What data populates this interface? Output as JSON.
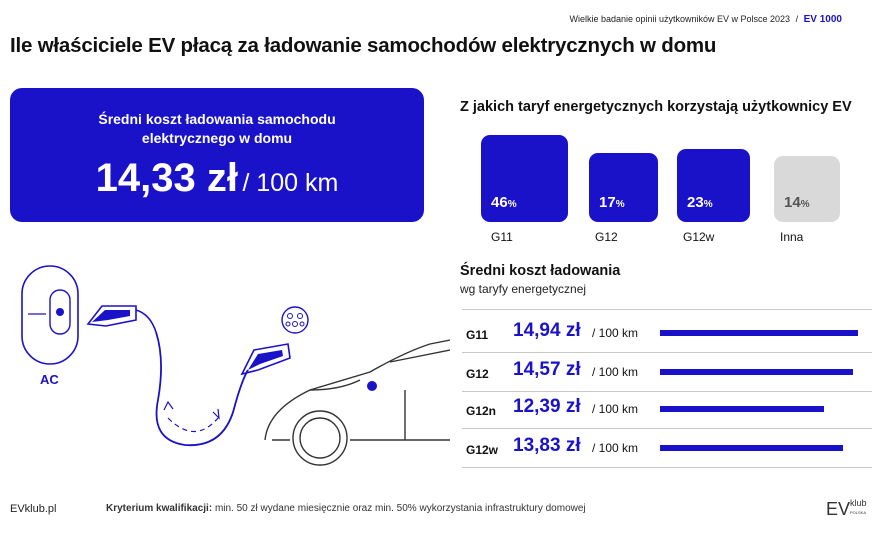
{
  "header": {
    "survey": "Wielkie badanie opinii użytkowników EV w Polsce 2023",
    "separator": "/",
    "brand": "EV 1000",
    "title": "Ile właściciele EV płacą za ładowanie samochodów elektrycznych w domu"
  },
  "cost_card": {
    "label_line1": "Średni koszt ładowania samochodu",
    "label_line2": "elektrycznego w domu",
    "value": "14,33 zł",
    "unit": "/ 100 km"
  },
  "illustration": {
    "ac_label": "AC"
  },
  "footer": {
    "site": "EVklub.pl",
    "criterion_label": "Kryterium kwalifikacji:",
    "criterion_text": "min. 50 zł wydane miesięcznie oraz min. 50% wykorzystania infrastruktury domowej",
    "logo_letters": "EV",
    "logo_word": "klub",
    "logo_small": "POLSKA"
  },
  "colors": {
    "accent": "#1a12c9",
    "inactive": "#d9d9d9"
  },
  "chart_data": [
    {
      "type": "bar",
      "title": "Z jakich taryf energetycznych korzystają użytkownicy EV",
      "categories": [
        "G11",
        "G12",
        "G12w",
        "Inna"
      ],
      "values": [
        46,
        17,
        23,
        14
      ],
      "value_labels": [
        "46%",
        "17%",
        "23%",
        "14%"
      ],
      "unit": "%",
      "bar_colors": [
        "#1a12c9",
        "#1a12c9",
        "#1a12c9",
        "#d9d9d9"
      ]
    },
    {
      "type": "bar",
      "orientation": "horizontal",
      "title": "Średni koszt ładowania",
      "subtitle": "wg taryfy energetycznej",
      "categories": [
        "G11",
        "G12",
        "G12n",
        "G12w"
      ],
      "values": [
        14.94,
        14.57,
        12.39,
        13.83
      ],
      "value_labels": [
        "14,94 zł",
        "14,57 zł",
        "12,39 zł",
        "13,83 zł"
      ],
      "unit_label": "/ 100 km"
    }
  ]
}
